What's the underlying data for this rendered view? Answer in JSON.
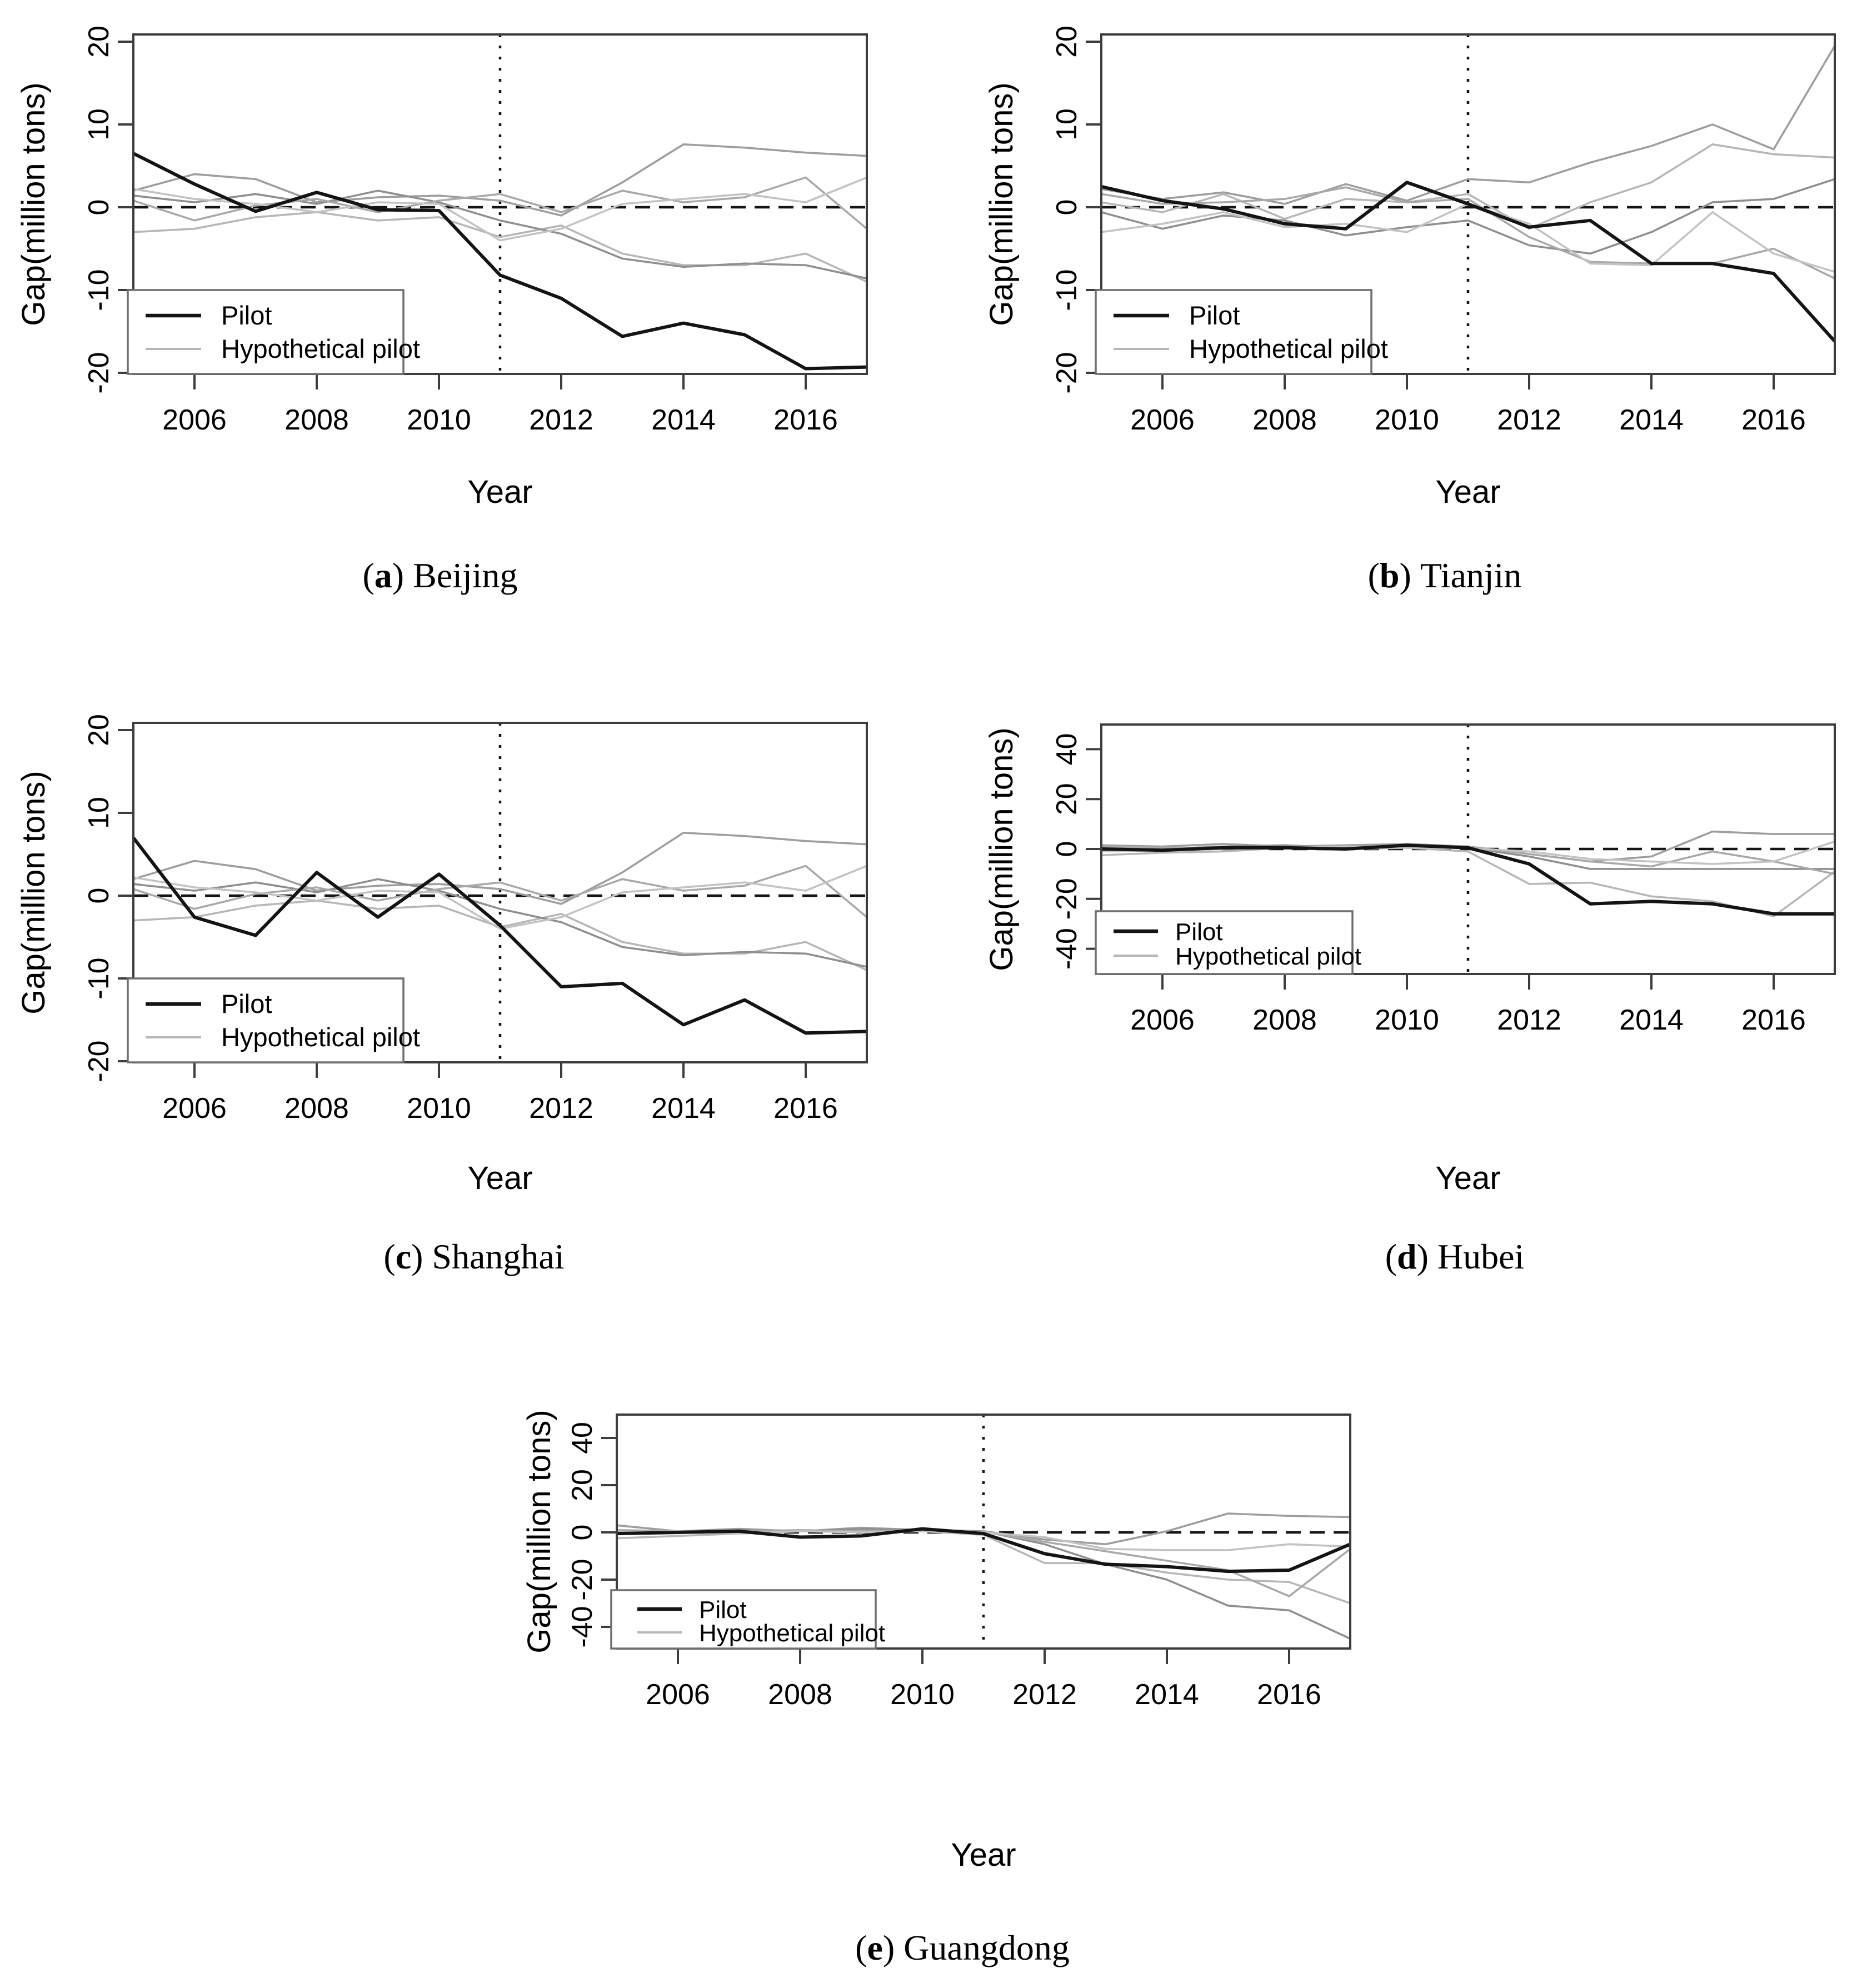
{
  "figure": {
    "paren_open": "(",
    "paren_close": ")",
    "colors": {
      "pilot": "#141414",
      "hypothetical_shades": [
        "#9e9e9e",
        "#b7b7b7",
        "#8f8f8f",
        "#a9a9a9",
        "#c3c3c3"
      ],
      "axis": "#3d3d3d",
      "legend_border": "#6f6f6f",
      "background": "#ffffff"
    }
  },
  "charts": [
    {
      "id": "a",
      "caption": {
        "marker": "a",
        "city": "Beijing"
      },
      "chart_data": {
        "type": "line",
        "xlabel": "Year",
        "ylabel": "Gap(million tons)",
        "x": [
          2005,
          2006,
          2007,
          2008,
          2009,
          2010,
          2011,
          2012,
          2013,
          2014,
          2015,
          2016,
          2017
        ],
        "xlim": [
          2005,
          2017
        ],
        "ylim": [
          -20.5,
          20.9
        ],
        "x_ticks": [
          2006,
          2008,
          2010,
          2012,
          2014,
          2016
        ],
        "y_ticks": [
          -20,
          -10,
          0,
          10,
          20
        ],
        "treatment_year": 2011,
        "zero_reference_line": true,
        "grid": false,
        "legend": {
          "position": "bottom-left",
          "entries": [
            "Pilot",
            "Hypothetical pilot"
          ]
        },
        "series": [
          {
            "name": "Pilot",
            "role": "pilot",
            "values": [
              6.5,
              2.8,
              -0.5,
              1.8,
              -0.3,
              -0.4,
              -8.2,
              -11.0,
              -15.6,
              -14.0,
              -15.4,
              -19.5,
              -19.3
            ]
          },
          {
            "name": "Hypothetical pilot 1",
            "role": "hypothetical",
            "values": [
              2.0,
              4.0,
              3.4,
              0.6,
              1.2,
              1.4,
              0.8,
              -1.0,
              3.0,
              7.6,
              7.2,
              6.6,
              6.2
            ]
          },
          {
            "name": "Hypothetical pilot 2",
            "role": "hypothetical",
            "values": [
              -3.0,
              -2.6,
              -1.2,
              -0.6,
              -1.6,
              -1.2,
              -3.6,
              -2.2,
              -5.6,
              -7.0,
              -7.0,
              -5.6,
              -9.0
            ]
          },
          {
            "name": "Hypothetical pilot 3",
            "role": "hypothetical",
            "values": [
              1.4,
              0.6,
              1.6,
              0.4,
              2.0,
              0.6,
              -1.6,
              -3.2,
              -6.2,
              -7.2,
              -6.8,
              -7.0,
              -8.6
            ]
          },
          {
            "name": "Hypothetical pilot 4",
            "role": "hypothetical",
            "values": [
              0.8,
              -1.6,
              0.2,
              1.0,
              -0.6,
              0.8,
              1.6,
              -0.6,
              2.0,
              0.6,
              1.2,
              3.6,
              -2.6
            ]
          },
          {
            "name": "Hypothetical pilot 5",
            "role": "hypothetical",
            "values": [
              2.2,
              1.0,
              0.4,
              -0.6,
              0.6,
              0.4,
              -4.0,
              -2.6,
              0.4,
              1.0,
              1.6,
              0.6,
              3.6
            ]
          }
        ]
      }
    },
    {
      "id": "b",
      "caption": {
        "marker": "b",
        "city": "Tianjin"
      },
      "chart_data": {
        "type": "line",
        "xlabel": "Year",
        "ylabel": "Gap(million tons)",
        "x": [
          2005,
          2006,
          2007,
          2008,
          2009,
          2010,
          2011,
          2012,
          2013,
          2014,
          2015,
          2016,
          2017
        ],
        "xlim": [
          2005,
          2017
        ],
        "ylim": [
          -20.5,
          20.9
        ],
        "x_ticks": [
          2006,
          2008,
          2010,
          2012,
          2014,
          2016
        ],
        "y_ticks": [
          -20,
          -10,
          0,
          10,
          20
        ],
        "treatment_year": 2011,
        "zero_reference_line": true,
        "grid": false,
        "legend": {
          "position": "bottom-left",
          "entries": [
            "Pilot",
            "Hypothetical pilot"
          ]
        },
        "series": [
          {
            "name": "Pilot",
            "role": "pilot",
            "values": [
              2.5,
              0.8,
              -0.2,
              -2.0,
              -2.6,
              3.0,
              0.4,
              -2.4,
              -1.6,
              -6.8,
              -6.8,
              -8.0,
              -16.2
            ]
          },
          {
            "name": "Hypothetical pilot 1",
            "role": "hypothetical",
            "values": [
              2.2,
              1.0,
              1.8,
              0.4,
              2.8,
              0.8,
              3.4,
              3.0,
              5.4,
              7.4,
              10.0,
              7.0,
              19.5
            ]
          },
          {
            "name": "Hypothetical pilot 2",
            "role": "hypothetical",
            "values": [
              0.6,
              -0.6,
              1.6,
              -1.4,
              1.0,
              0.6,
              1.6,
              -2.6,
              0.6,
              3.0,
              7.6,
              6.4,
              6.0
            ]
          },
          {
            "name": "Hypothetical pilot 3",
            "role": "hypothetical",
            "values": [
              -0.6,
              -2.6,
              -1.0,
              -1.6,
              -3.4,
              -2.4,
              -1.6,
              -4.6,
              -5.6,
              -3.0,
              0.6,
              1.0,
              3.4
            ]
          },
          {
            "name": "Hypothetical pilot 4",
            "role": "hypothetical",
            "values": [
              1.6,
              0.4,
              0.6,
              1.0,
              2.4,
              0.6,
              1.0,
              -3.6,
              -6.6,
              -6.8,
              -6.8,
              -5.0,
              -8.6
            ]
          },
          {
            "name": "Hypothetical pilot 5",
            "role": "hypothetical",
            "values": [
              -3.0,
              -2.0,
              -0.6,
              -2.4,
              -2.0,
              -3.0,
              0.4,
              -2.0,
              -6.8,
              -7.0,
              -0.6,
              -5.6,
              -7.8
            ]
          }
        ]
      }
    },
    {
      "id": "c",
      "caption": {
        "marker": "c",
        "city": "Shanghai"
      },
      "chart_data": {
        "type": "line",
        "xlabel": "Year",
        "ylabel": "Gap(million tons)",
        "x": [
          2005,
          2006,
          2007,
          2008,
          2009,
          2010,
          2011,
          2012,
          2013,
          2014,
          2015,
          2016,
          2017
        ],
        "xlim": [
          2005,
          2017
        ],
        "ylim": [
          -20.5,
          20.9
        ],
        "x_ticks": [
          2006,
          2008,
          2010,
          2012,
          2014,
          2016
        ],
        "y_ticks": [
          -20,
          -10,
          0,
          10,
          20
        ],
        "treatment_year": 2011,
        "zero_reference_line": true,
        "grid": false,
        "legend": {
          "position": "bottom-left",
          "entries": [
            "Pilot",
            "Hypothetical pilot"
          ]
        },
        "series": [
          {
            "name": "Pilot",
            "role": "pilot",
            "values": [
              7.0,
              -2.6,
              -4.8,
              2.8,
              -2.6,
              2.6,
              -3.6,
              -11.0,
              -10.6,
              -15.6,
              -12.6,
              -16.6,
              -16.4
            ]
          },
          {
            "name": "Hypothetical pilot 1",
            "role": "hypothetical",
            "values": [
              2.0,
              4.2,
              3.2,
              0.6,
              1.2,
              1.4,
              0.8,
              -1.0,
              2.8,
              7.6,
              7.2,
              6.6,
              6.2
            ]
          },
          {
            "name": "Hypothetical pilot 2",
            "role": "hypothetical",
            "values": [
              -3.0,
              -2.6,
              -1.2,
              -0.6,
              -1.6,
              -1.2,
              -3.8,
              -2.2,
              -5.6,
              -7.0,
              -7.0,
              -5.6,
              -9.0
            ]
          },
          {
            "name": "Hypothetical pilot 3",
            "role": "hypothetical",
            "values": [
              1.4,
              0.6,
              1.6,
              0.4,
              2.0,
              0.6,
              -1.6,
              -3.2,
              -6.2,
              -7.2,
              -6.8,
              -7.0,
              -8.6
            ]
          },
          {
            "name": "Hypothetical pilot 4",
            "role": "hypothetical",
            "values": [
              0.8,
              -1.6,
              0.2,
              1.0,
              -0.6,
              0.8,
              1.6,
              -0.6,
              2.0,
              0.6,
              1.2,
              3.6,
              -2.6
            ]
          },
          {
            "name": "Hypothetical pilot 5",
            "role": "hypothetical",
            "values": [
              2.2,
              1.0,
              0.4,
              -0.6,
              0.6,
              0.4,
              -4.0,
              -2.6,
              0.4,
              1.0,
              1.6,
              0.6,
              3.6
            ]
          }
        ]
      }
    },
    {
      "id": "d",
      "caption": {
        "marker": "d",
        "city": "Hubei"
      },
      "chart_data": {
        "type": "line",
        "xlabel": "Year",
        "ylabel": "Gap(million tons)",
        "x": [
          2005,
          2006,
          2007,
          2008,
          2009,
          2010,
          2011,
          2012,
          2013,
          2014,
          2015,
          2016,
          2017
        ],
        "xlim": [
          2005,
          2017
        ],
        "ylim": [
          -50,
          50
        ],
        "x_ticks": [
          2006,
          2008,
          2010,
          2012,
          2014,
          2016
        ],
        "y_ticks": [
          -40,
          -20,
          0,
          20,
          40
        ],
        "treatment_year": 2011,
        "zero_reference_line": true,
        "grid": false,
        "legend": {
          "position": "bottom-left",
          "entries": [
            "Pilot",
            "Hypothetical pilot"
          ]
        },
        "series": [
          {
            "name": "Pilot",
            "role": "pilot",
            "values": [
              0.0,
              -0.5,
              0.5,
              0.5,
              0.0,
              1.5,
              0.5,
              -6.0,
              -22.0,
              -21.0,
              -22.0,
              -26.0,
              -26.0
            ]
          },
          {
            "name": "Hypothetical pilot 1",
            "role": "hypothetical",
            "values": [
              1.5,
              1.0,
              2.0,
              1.0,
              1.5,
              2.0,
              1.0,
              -2.0,
              -5.0,
              -3.0,
              7.0,
              6.0,
              6.0
            ]
          },
          {
            "name": "Hypothetical pilot 2",
            "role": "hypothetical",
            "values": [
              -2.5,
              -1.5,
              -1.0,
              0.5,
              0.0,
              0.5,
              -1.0,
              -14.0,
              -13.5,
              -19.0,
              -21.0,
              -27.0,
              -9.0
            ]
          },
          {
            "name": "Hypothetical pilot 3",
            "role": "hypothetical",
            "values": [
              0.5,
              0.0,
              1.0,
              1.5,
              0.5,
              1.0,
              0.5,
              -3.0,
              -8.0,
              -8.0,
              -8.0,
              -8.0,
              -8.0
            ]
          },
          {
            "name": "Hypothetical pilot 4",
            "role": "hypothetical",
            "values": [
              1.0,
              0.5,
              0.5,
              1.0,
              1.0,
              1.5,
              1.0,
              -2.0,
              -5.0,
              -7.0,
              -1.0,
              -5.0,
              -10.0
            ]
          },
          {
            "name": "Hypothetical pilot 5",
            "role": "hypothetical",
            "values": [
              -1.0,
              -0.5,
              0.0,
              0.5,
              1.0,
              0.5,
              0.3,
              -1.0,
              -4.0,
              -5.0,
              -6.0,
              -5.0,
              3.0
            ]
          }
        ]
      }
    },
    {
      "id": "e",
      "caption": {
        "marker": "e",
        "city": "Guangdong"
      },
      "chart_data": {
        "type": "line",
        "xlabel": "Year",
        "ylabel": "Gap(million tons)",
        "x": [
          2005,
          2006,
          2007,
          2008,
          2009,
          2010,
          2011,
          2012,
          2013,
          2014,
          2015,
          2016,
          2017
        ],
        "xlim": [
          2005,
          2017
        ],
        "ylim": [
          -50,
          50
        ],
        "x_ticks": [
          2006,
          2008,
          2010,
          2012,
          2014,
          2016
        ],
        "y_ticks": [
          -40,
          -20,
          0,
          20,
          40
        ],
        "treatment_year": 2011,
        "zero_reference_line": true,
        "grid": false,
        "legend": {
          "position": "bottom-left",
          "entries": [
            "Pilot",
            "Hypothetical pilot"
          ]
        },
        "series": [
          {
            "name": "Pilot",
            "role": "pilot",
            "values": [
              -0.5,
              0.0,
              0.5,
              -2.0,
              -1.5,
              1.5,
              -0.5,
              -9.0,
              -13.5,
              -14.5,
              -16.5,
              -16.0,
              -5.0
            ]
          },
          {
            "name": "Hypothetical pilot 1",
            "role": "hypothetical",
            "values": [
              3.0,
              0.5,
              1.5,
              0.5,
              2.0,
              1.0,
              0.5,
              -3.0,
              -5.0,
              0.5,
              8.0,
              7.0,
              6.5
            ]
          },
          {
            "name": "Hypothetical pilot 2",
            "role": "hypothetical",
            "values": [
              -2.5,
              -1.5,
              -0.5,
              0.5,
              1.0,
              0.5,
              -1.0,
              -13.0,
              -13.0,
              -17.0,
              -20.0,
              -21.0,
              -30.0
            ]
          },
          {
            "name": "Hypothetical pilot 3",
            "role": "hypothetical",
            "values": [
              0.5,
              0.0,
              1.0,
              0.5,
              1.5,
              1.0,
              0.5,
              -5.0,
              -13.5,
              -20.0,
              -31.0,
              -33.0,
              -45.0
            ]
          },
          {
            "name": "Hypothetical pilot 4",
            "role": "hypothetical",
            "values": [
              1.0,
              0.5,
              0.5,
              1.0,
              0.5,
              1.0,
              0.3,
              -4.0,
              -8.0,
              -12.0,
              -16.0,
              -27.0,
              -7.0
            ]
          },
          {
            "name": "Hypothetical pilot 5",
            "role": "hypothetical",
            "values": [
              0.0,
              0.5,
              -0.5,
              0.5,
              0.0,
              0.5,
              0.0,
              -2.0,
              -7.0,
              -7.5,
              -7.5,
              -5.0,
              -6.0
            ]
          }
        ]
      }
    }
  ]
}
